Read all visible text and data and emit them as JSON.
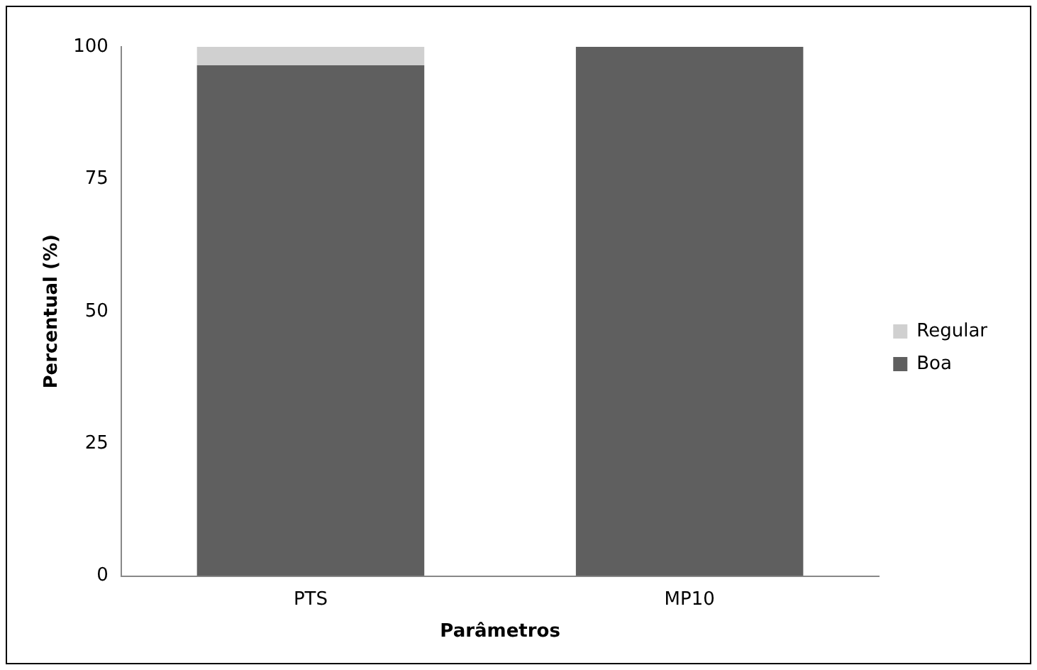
{
  "chart_data": {
    "type": "bar",
    "stacked": true,
    "xlabel": "Parâmetros",
    "ylabel": "Percentual (%)",
    "categories": [
      "PTS",
      "MP10"
    ],
    "series": [
      {
        "name": "Boa",
        "color": "#5f5f5f",
        "values": [
          96.5,
          100
        ]
      },
      {
        "name": "Regular",
        "color": "#d0d0d0",
        "values": [
          3.5,
          0
        ]
      }
    ],
    "ylim": [
      0,
      100
    ],
    "yticks": [
      0,
      25,
      50,
      75,
      100
    ],
    "grid": false,
    "legend": "right"
  }
}
